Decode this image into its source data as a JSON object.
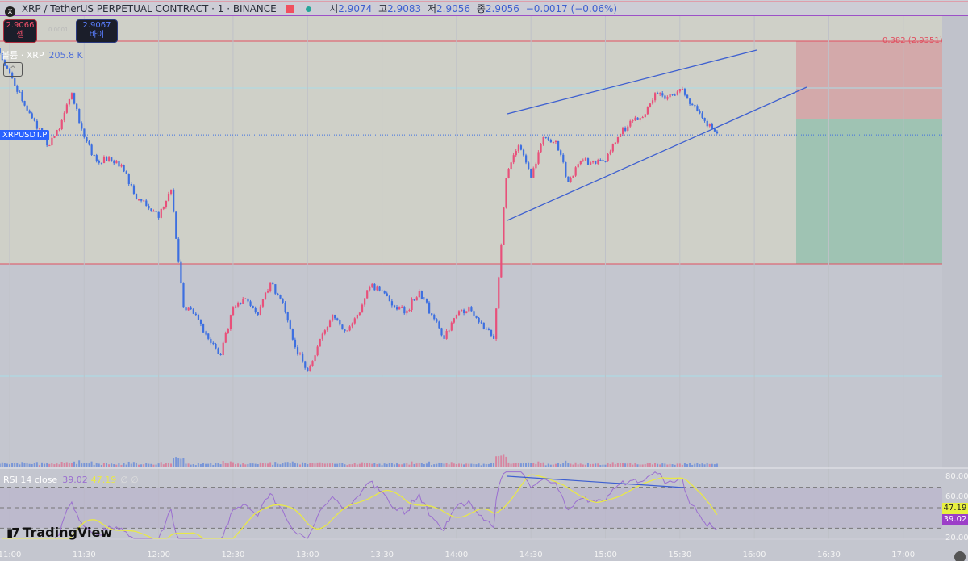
{
  "header": {
    "symbol_title": "XRP / TetherUS PERPETUAL CONTRACT · 1 · BINANCE",
    "logo_letter": "X",
    "ohlc": [
      {
        "label": "시",
        "value": "2.9074"
      },
      {
        "label": "고",
        "value": "2.9083"
      },
      {
        "label": "저",
        "value": "2.9056"
      },
      {
        "label": "종",
        "value": "2.9056"
      }
    ],
    "change": "−0.0017 (−0.06%)"
  },
  "trade": {
    "sell_price": "2.9066",
    "sell_label": "셀",
    "spread": "0.0001",
    "buy_price": "2.9067",
    "buy_label": "바이"
  },
  "volume_legend": {
    "label": "볼륨 · XRP",
    "value": "205.8 K"
  },
  "collapse_symbol": "^",
  "symbol_label": "XRPUSDT.P",
  "fib_label": "0.382 (2.9351)",
  "rsi": {
    "legend": "RSI 14 close",
    "rsi_value": "39.02",
    "ma_value": "47.19",
    "extra": "∅ ∅",
    "axis": [
      "80.00",
      "60.00",
      "20.00"
    ],
    "badge_ma": "47.19",
    "badge_rsi": "39.02"
  },
  "time_axis": [
    "11:00",
    "11:30",
    "12:00",
    "12:30",
    "13:00",
    "13:30",
    "14:00",
    "14:30",
    "15:00",
    "15:30",
    "16:00",
    "16:30",
    "17:00"
  ],
  "branding": "TradingView",
  "colors": {
    "up": "#e8507a",
    "down": "#3d6fe0",
    "rsi": "#9b6fd0",
    "rsi_ma": "#e8e848",
    "fib_red": "#e05060",
    "wedge": "#3d5fd0"
  },
  "chart_data": {
    "type": "candlestick",
    "interval": "1",
    "sample_note_times": "5-minute closes",
    "times": [
      "10:55",
      "11:00",
      "11:05",
      "11:10",
      "11:15",
      "11:20",
      "11:25",
      "11:30",
      "11:35",
      "11:40",
      "11:45",
      "11:50",
      "11:55",
      "12:00",
      "12:05",
      "12:10",
      "12:15",
      "12:20",
      "12:25",
      "12:30",
      "12:35",
      "12:40",
      "12:45",
      "12:50",
      "12:55",
      "13:00",
      "13:05",
      "13:10",
      "13:15",
      "13:20",
      "13:25",
      "13:30",
      "13:35",
      "13:40",
      "13:45",
      "13:50",
      "13:55",
      "14:00",
      "14:05",
      "14:10",
      "14:15",
      "14:20",
      "14:25",
      "14:30",
      "14:35",
      "14:40",
      "14:45",
      "14:50",
      "14:55",
      "15:00",
      "15:05",
      "15:10",
      "15:15",
      "15:20",
      "15:25",
      "15:30",
      "15:35",
      "15:40",
      "15:45"
    ],
    "close": [
      2.9328,
      2.9252,
      2.9163,
      2.91,
      2.9023,
      2.9074,
      2.9188,
      2.9049,
      2.8973,
      2.8985,
      2.896,
      2.8871,
      2.8833,
      2.8795,
      2.8884,
      2.8515,
      2.849,
      2.8414,
      2.8363,
      2.8515,
      2.8541,
      2.849,
      2.8592,
      2.8528,
      2.8388,
      2.8312,
      2.8414,
      2.849,
      2.8439,
      2.849,
      2.8579,
      2.8566,
      2.8515,
      2.8503,
      2.8566,
      2.849,
      2.8414,
      2.849,
      2.8515,
      2.8465,
      2.8414,
      2.892,
      2.9023,
      2.8922,
      2.9049,
      2.9036,
      2.8909,
      2.8973,
      2.8973,
      2.8973,
      2.9049,
      2.91,
      2.9112,
      2.9188,
      2.9175,
      2.9201,
      2.915,
      2.91,
      2.9061
    ],
    "last_price": 2.9056,
    "fib_level": {
      "ratio": 0.382,
      "price": 2.9351
    },
    "rsi_ylim": [
      20,
      80
    ],
    "rsi_bands": [
      70,
      50,
      30
    ]
  }
}
